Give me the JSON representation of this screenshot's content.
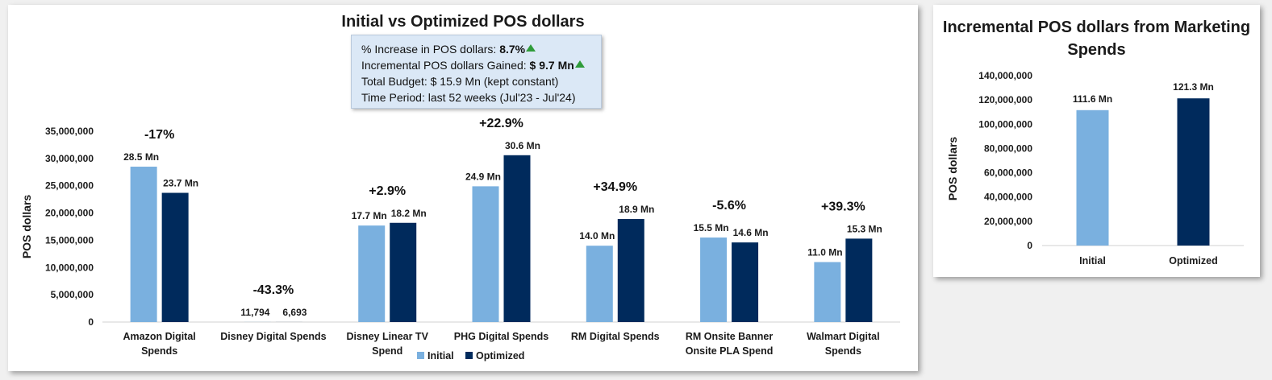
{
  "chart_data": [
    {
      "type": "bar",
      "title": "Initial vs Optimized POS dollars",
      "ylabel": "POS dollars",
      "xlabel": "",
      "ylim": [
        0,
        35000000
      ],
      "yticks": [
        "0",
        "5,000,000",
        "10,000,000",
        "15,000,000",
        "20,000,000",
        "25,000,000",
        "30,000,000",
        "35,000,000"
      ],
      "legend_position": "bottom",
      "categories": [
        [
          "Amazon Digital",
          "Spends"
        ],
        [
          "Disney Digital Spends"
        ],
        [
          "Disney Linear TV",
          "Spend"
        ],
        [
          "PHG Digital Spends"
        ],
        [
          "RM Digital Spends"
        ],
        [
          "RM Onsite Banner",
          "Onsite PLA Spend"
        ],
        [
          "Walmart Digital",
          "Spends"
        ]
      ],
      "series": [
        {
          "name": "Initial",
          "color": "#7ab0df",
          "values": [
            28500000,
            11794,
            17700000,
            24900000,
            14000000,
            15500000,
            11000000
          ],
          "labels": [
            "28.5 Mn",
            "11,794",
            "17.7 Mn",
            "24.9 Mn",
            "14.0 Mn",
            "15.5 Mn",
            "11.0 Mn"
          ]
        },
        {
          "name": "Optimized",
          "color": "#002a5c",
          "values": [
            23700000,
            6693,
            18200000,
            30600000,
            18900000,
            14600000,
            15300000
          ],
          "labels": [
            "23.7 Mn",
            "6,693",
            "18.2 Mn",
            "30.6 Mn",
            "18.9 Mn",
            "14.6 Mn",
            "15.3 Mn"
          ]
        }
      ],
      "change_labels": [
        "-17%",
        "-43.3%",
        "+2.9%",
        "+22.9%",
        "+34.9%",
        "-5.6%",
        "+39.3%"
      ],
      "summary": {
        "line1_label": "% Increase in POS dollars: ",
        "line1_value": "8.7%",
        "line2_label": "Incremental POS dollars Gained: ",
        "line2_value": "$ 9.7 Mn",
        "line3": "Total Budget: $ 15.9 Mn (kept constant)",
        "line4": "Time Period: last 52 weeks (Jul'23 - Jul'24)",
        "arrow_icon": "up-arrow-icon"
      }
    },
    {
      "type": "bar",
      "title": "Incremental POS dollars from Marketing Spends",
      "ylabel": "POS dollars",
      "xlabel": "",
      "ylim": [
        0,
        140000000
      ],
      "yticks": [
        "0",
        "20,000,000",
        "40,000,000",
        "60,000,000",
        "80,000,000",
        "100,000,000",
        "120,000,000",
        "140,000,000"
      ],
      "categories": [
        "Initial",
        "Optimized"
      ],
      "values": [
        111600000,
        121300000
      ],
      "labels": [
        "111.6 Mn",
        "121.3 Mn"
      ],
      "colors": [
        "#7ab0df",
        "#002a5c"
      ]
    }
  ]
}
